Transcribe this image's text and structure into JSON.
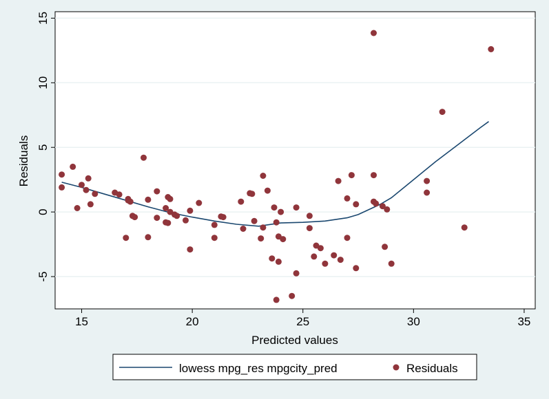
{
  "chart_data": {
    "type": "scatter",
    "xlabel": "Predicted values",
    "ylabel": "Residuals",
    "xlim": [
      13.8,
      35.5
    ],
    "ylim": [
      -7.5,
      15.5
    ],
    "xticks": [
      15,
      20,
      25,
      30,
      35
    ],
    "yticks": [
      -5,
      0,
      5,
      10,
      15
    ],
    "grid": "horizontal",
    "legend_position": "bottom",
    "colors": {
      "line": "#1a476f",
      "points": "#90353b",
      "plot_bg": "#ffffff",
      "outer_bg": "#eaf2f3"
    },
    "series": [
      {
        "name": "lowess mpg_res mpgcity_pred",
        "type": "line",
        "x": [
          14.1,
          15,
          16,
          17,
          18,
          19,
          20,
          21,
          22,
          23,
          24,
          25,
          26,
          27,
          27.5,
          28,
          28.5,
          29,
          30,
          31,
          32,
          33,
          33.4
        ],
        "y": [
          2.3,
          1.9,
          1.4,
          0.9,
          0.4,
          -0.05,
          -0.4,
          -0.7,
          -0.95,
          -1.1,
          -0.85,
          -0.8,
          -0.7,
          -0.45,
          -0.2,
          0.2,
          0.6,
          1.1,
          2.5,
          3.9,
          5.2,
          6.5,
          7.0
        ]
      },
      {
        "name": "Residuals",
        "type": "scatter",
        "x": [
          14.1,
          14.1,
          14.6,
          14.8,
          15,
          15.2,
          15.3,
          15.4,
          15.6,
          16.5,
          16.7,
          17,
          17.1,
          17.1,
          17.2,
          17.3,
          17.4,
          17.8,
          18,
          18,
          18.4,
          18.4,
          18.8,
          18.8,
          18.9,
          18.9,
          19,
          19,
          19.2,
          19.3,
          19.7,
          19.9,
          19.9,
          20.3,
          21,
          21,
          21.3,
          21.4,
          22.2,
          22.3,
          22.6,
          22.7,
          22.8,
          23.1,
          23.2,
          23.2,
          23.4,
          23.6,
          23.7,
          23.8,
          23.8,
          23.9,
          23.9,
          24,
          24.1,
          24.5,
          24.7,
          24.7,
          25.3,
          25.3,
          25.5,
          25.6,
          25.8,
          26,
          26.4,
          26.6,
          26.7,
          27,
          27,
          27.2,
          27.4,
          27.4,
          28.2,
          28.2,
          28.2,
          28.3,
          28.6,
          28.7,
          28.8,
          29,
          30.6,
          30.6,
          31.3,
          32.3,
          33.5
        ],
        "y": [
          2.9,
          1.9,
          3.5,
          0.3,
          2.1,
          1.7,
          2.6,
          0.6,
          1.4,
          1.5,
          1.35,
          -2.0,
          1.0,
          0.9,
          0.8,
          -0.3,
          -0.4,
          4.2,
          0.95,
          -1.95,
          1.6,
          -0.45,
          0.3,
          -0.8,
          -0.85,
          1.15,
          0.0,
          1.0,
          -0.2,
          -0.3,
          -0.65,
          0.1,
          -2.9,
          0.7,
          -1.0,
          -2.0,
          -0.35,
          -0.4,
          0.8,
          -1.3,
          1.45,
          1.4,
          -0.7,
          -2.05,
          2.8,
          -1.2,
          1.65,
          -3.6,
          0.35,
          -6.8,
          -0.8,
          -3.85,
          -1.9,
          0.0,
          -2.1,
          -6.5,
          0.35,
          -4.75,
          -0.3,
          -1.25,
          -3.45,
          -2.6,
          -2.8,
          -4.0,
          -3.35,
          2.4,
          -3.7,
          1.05,
          -2.0,
          2.85,
          0.6,
          -4.35,
          13.85,
          2.85,
          0.8,
          0.65,
          0.45,
          -2.7,
          0.2,
          -4.0,
          2.4,
          1.5,
          7.75,
          -1.2,
          12.6
        ]
      }
    ]
  }
}
